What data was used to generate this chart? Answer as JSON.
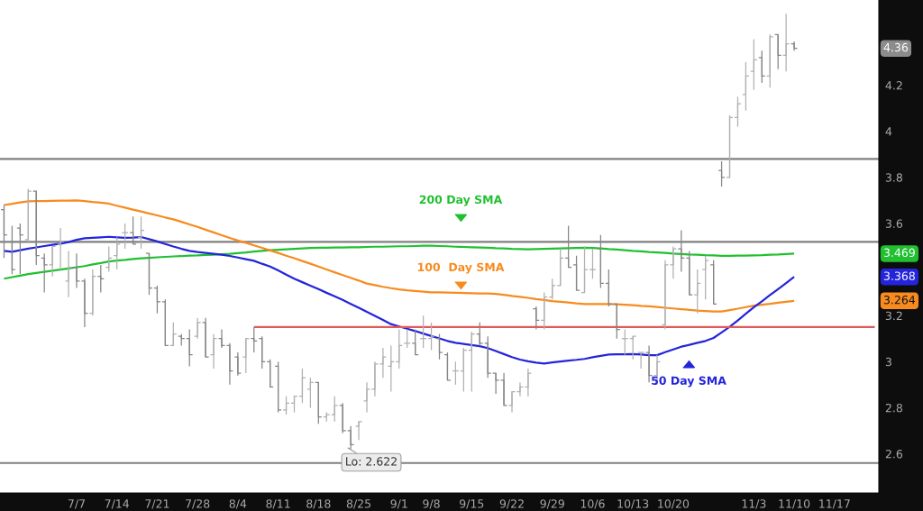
{
  "chart_data": {
    "type": "candlestick",
    "categories": [
      null,
      null,
      null,
      null,
      null,
      null,
      null,
      null,
      null,
      "7/7",
      null,
      null,
      null,
      null,
      "7/14",
      null,
      null,
      null,
      null,
      "7/21",
      null,
      null,
      null,
      null,
      "7/28",
      null,
      null,
      null,
      null,
      "8/4",
      null,
      null,
      null,
      null,
      "8/11",
      null,
      null,
      null,
      null,
      "8/18",
      null,
      null,
      null,
      null,
      "8/25",
      null,
      null,
      null,
      null,
      "9/1",
      null,
      null,
      null,
      "9/8",
      null,
      null,
      null,
      null,
      "9/15",
      null,
      null,
      null,
      null,
      "9/22",
      null,
      null,
      null,
      null,
      "9/29",
      null,
      null,
      null,
      null,
      "10/6",
      null,
      null,
      null,
      null,
      "10/13",
      null,
      null,
      null,
      null,
      "10/20",
      null,
      null,
      null,
      null,
      null,
      null,
      null,
      null,
      null,
      "11/3",
      null,
      null,
      null,
      null,
      "11/10",
      null,
      null,
      null,
      null,
      "11/17",
      null,
      null,
      null,
      null,
      null
    ],
    "ylim": [
      2.43,
      4.57
    ],
    "yticks": [
      2.6,
      2.8,
      3,
      3.2,
      3.6,
      3.8,
      4,
      4.2
    ],
    "series": [
      {
        "color": "#8c8c8c",
        "colors": [
          "#868686",
          "#868686",
          "#868686",
          "#b0b0b0",
          "#868686",
          "#868686",
          "#b0b0b0",
          "#b0b0b0",
          "#b0b0b0",
          "#868686",
          "#868686",
          "#b0b0b0",
          "#868686",
          "#b0b0b0",
          "#b0b0b0",
          "#b0b0b0",
          "#868686",
          "#b0b0b0",
          "#868686",
          "#868686",
          "#868686",
          "#b0b0b0",
          "#868686",
          "#868686",
          "#b0b0b0",
          "#868686",
          "#b0b0b0",
          "#868686",
          "#868686",
          "#868686",
          "#b0b0b0",
          "#868686",
          "#868686",
          "#868686",
          "#868686",
          "#b0b0b0",
          "#b0b0b0",
          "#b0b0b0",
          "#b0b0b0",
          "#868686",
          "#b0b0b0",
          "#b0b0b0",
          "#868686",
          "#868686",
          "#b0b0b0",
          "#b0b0b0",
          "#b0b0b0",
          "#b0b0b0",
          "#b0b0b0",
          "#b0b0b0",
          "#b0b0b0",
          "#868686",
          "#b0b0b0",
          "#b0b0b0",
          "#868686",
          "#868686",
          "#b0b0b0",
          "#b0b0b0",
          "#b0b0b0",
          "#868686",
          "#868686",
          "#868686",
          "#868686",
          "#b0b0b0",
          "#b0b0b0",
          "#b0b0b0",
          "#868686",
          "#b0b0b0",
          "#b0b0b0",
          "#b0b0b0",
          "#868686",
          "#868686",
          "#b0b0b0",
          "#b0b0b0",
          "#868686",
          "#868686",
          "#868686",
          "#b0b0b0",
          "#b0b0b0",
          "#b0b0b0",
          "#868686",
          "#b0b0b0",
          "#b0b0b0",
          "#b0b0b0",
          "#868686",
          "#868686",
          "#b0b0b0",
          "#b0b0b0",
          "#868686",
          "#868686",
          "#b0b0b0",
          "#b0b0b0",
          "#b0b0b0",
          "#b0b0b0",
          "#868686",
          "#b0b0b0",
          "#868686",
          "#b0b0b0",
          "#868686",
          null,
          null,
          null,
          null,
          null,
          null,
          null,
          null,
          null,
          null
        ],
        "ohlc": [
          [
            3.66,
            3.68,
            3.45,
            3.55
          ],
          [
            3.52,
            3.59,
            3.38,
            3.4
          ],
          [
            3.58,
            3.6,
            3.38,
            3.55
          ],
          [
            3.53,
            3.75,
            3.52,
            3.74
          ],
          [
            3.74,
            3.74,
            3.42,
            3.46
          ],
          [
            3.45,
            3.47,
            3.3,
            3.42
          ],
          [
            3.42,
            3.5,
            3.37,
            3.5
          ],
          [
            3.51,
            3.58,
            3.4,
            3.52
          ],
          [
            3.35,
            3.48,
            3.28,
            3.41
          ],
          [
            3.41,
            3.47,
            3.32,
            3.35
          ],
          [
            3.35,
            3.36,
            3.15,
            3.21
          ],
          [
            3.21,
            3.4,
            3.2,
            3.37
          ],
          [
            3.37,
            3.42,
            3.3,
            3.36
          ],
          [
            3.41,
            3.5,
            3.39,
            3.45
          ],
          [
            3.46,
            3.54,
            3.4,
            3.51
          ],
          [
            3.56,
            3.6,
            3.49,
            3.56
          ],
          [
            3.56,
            3.63,
            3.51,
            3.51
          ],
          [
            3.54,
            3.63,
            3.49,
            3.57
          ],
          [
            3.47,
            3.47,
            3.29,
            3.32
          ],
          [
            3.32,
            3.33,
            3.21,
            3.26
          ],
          [
            3.26,
            3.27,
            3.07,
            3.07
          ],
          [
            3.07,
            3.17,
            3.07,
            3.12
          ],
          [
            3.11,
            3.12,
            3.07,
            3.1
          ],
          [
            3.1,
            3.14,
            2.98,
            3.03
          ],
          [
            3.11,
            3.19,
            3.1,
            3.17
          ],
          [
            3.17,
            3.19,
            3.02,
            3.02
          ],
          [
            3.03,
            3.12,
            2.97,
            3.1
          ],
          [
            3.1,
            3.14,
            3.06,
            3.07
          ],
          [
            3.07,
            3.08,
            2.9,
            2.96
          ],
          [
            3.02,
            3.04,
            2.94,
            2.95
          ],
          [
            3.02,
            3.1,
            2.95,
            3.1
          ],
          [
            3.1,
            3.15,
            3.04,
            3.09
          ],
          [
            3.1,
            3.11,
            2.97,
            3.0
          ],
          [
            3.0,
            3.01,
            2.89,
            2.89
          ],
          [
            2.98,
            3.0,
            2.78,
            2.79
          ],
          [
            2.79,
            2.85,
            2.77,
            2.82
          ],
          [
            2.82,
            2.85,
            2.78,
            2.85
          ],
          [
            2.85,
            2.97,
            2.82,
            2.93
          ],
          [
            2.88,
            2.93,
            2.8,
            2.91
          ],
          [
            2.91,
            2.91,
            2.73,
            2.76
          ],
          [
            2.76,
            2.78,
            2.74,
            2.77
          ],
          [
            2.77,
            2.85,
            2.74,
            2.81
          ],
          [
            2.81,
            2.82,
            2.69,
            2.7
          ],
          [
            2.7,
            2.72,
            2.622,
            2.64
          ],
          [
            2.72,
            2.74,
            2.66,
            2.74
          ],
          [
            2.83,
            2.91,
            2.78,
            2.88
          ],
          [
            2.88,
            3.0,
            2.85,
            2.99
          ],
          [
            2.99,
            3.06,
            2.93,
            3.02
          ],
          [
            2.98,
            3.07,
            2.87,
            3.0
          ],
          [
            3.0,
            3.14,
            2.97,
            3.07
          ],
          [
            3.08,
            3.14,
            3.06,
            3.08
          ],
          [
            3.08,
            3.14,
            3.03,
            3.03
          ],
          [
            3.1,
            3.2,
            3.06,
            3.1
          ],
          [
            3.1,
            3.17,
            3.05,
            3.11
          ],
          [
            3.1,
            3.12,
            3.01,
            3.04
          ],
          [
            3.03,
            3.04,
            2.92,
            2.92
          ],
          [
            2.96,
            3.0,
            2.9,
            2.96
          ],
          [
            2.96,
            3.06,
            2.87,
            3.05
          ],
          [
            3.05,
            3.13,
            2.87,
            3.12
          ],
          [
            3.12,
            3.17,
            3.07,
            3.08
          ],
          [
            3.08,
            3.11,
            2.93,
            2.95
          ],
          [
            2.95,
            2.95,
            2.86,
            2.92
          ],
          [
            2.92,
            2.95,
            2.81,
            2.81
          ],
          [
            2.81,
            2.87,
            2.78,
            2.87
          ],
          [
            2.87,
            2.91,
            2.85,
            2.89
          ],
          [
            2.89,
            2.97,
            2.85,
            2.95
          ],
          [
            3.23,
            3.24,
            3.14,
            3.18
          ],
          [
            3.18,
            3.3,
            3.14,
            3.28
          ],
          [
            3.28,
            3.36,
            3.27,
            3.33
          ],
          [
            3.33,
            3.49,
            3.33,
            3.45
          ],
          [
            3.45,
            3.59,
            3.41,
            3.41
          ],
          [
            3.42,
            3.46,
            3.31,
            3.31
          ],
          [
            3.3,
            3.5,
            3.3,
            3.4
          ],
          [
            3.4,
            3.49,
            3.36,
            3.4
          ],
          [
            3.49,
            3.55,
            3.32,
            3.34
          ],
          [
            3.34,
            3.4,
            3.24,
            3.25
          ],
          [
            3.25,
            3.25,
            3.1,
            3.14
          ],
          [
            3.1,
            3.14,
            3.03,
            3.1
          ],
          [
            3.1,
            3.11,
            3.01,
            3.11
          ],
          [
            3.04,
            3.04,
            2.97,
            3.04
          ],
          [
            3.04,
            3.07,
            2.91,
            2.94
          ],
          [
            2.94,
            3.03,
            2.9,
            3.0
          ],
          [
            3.16,
            3.44,
            3.14,
            3.42
          ],
          [
            3.42,
            3.5,
            3.36,
            3.49
          ],
          [
            3.49,
            3.57,
            3.39,
            3.45
          ],
          [
            3.45,
            3.48,
            3.29,
            3.29
          ],
          [
            3.29,
            3.4,
            3.21,
            3.34
          ],
          [
            3.4,
            3.46,
            3.27,
            3.44
          ],
          [
            3.42,
            3.44,
            3.25,
            3.25
          ],
          [
            3.83,
            3.87,
            3.76,
            3.8
          ],
          [
            3.8,
            4.07,
            3.8,
            4.06
          ],
          [
            4.06,
            4.15,
            4.02,
            4.12
          ],
          [
            4.16,
            4.3,
            4.09,
            4.24
          ],
          [
            4.26,
            4.4,
            4.18,
            4.31
          ],
          [
            4.32,
            4.35,
            4.21,
            4.24
          ],
          [
            4.24,
            4.42,
            4.19,
            4.41
          ],
          [
            4.42,
            4.42,
            4.27,
            4.33
          ],
          [
            4.33,
            4.51,
            4.26,
            4.38
          ],
          [
            4.38,
            4.39,
            4.35,
            4.36
          ],
          null,
          null,
          null,
          null,
          null,
          null,
          null,
          null,
          null,
          null
        ]
      },
      {
        "type": "line",
        "color": "#20c030",
        "values": [
          3.36,
          3.367,
          3.373,
          3.38,
          3.385,
          3.39,
          3.395,
          3.4,
          3.405,
          3.41,
          3.415,
          3.422,
          3.428,
          3.435,
          3.439,
          3.442,
          3.446,
          3.449,
          3.451,
          3.453,
          3.455,
          3.457,
          3.458,
          3.46,
          3.461,
          3.463,
          3.464,
          3.466,
          3.468,
          3.471,
          3.474,
          3.478,
          3.481,
          3.484,
          3.486,
          3.488,
          3.49,
          3.492,
          3.494,
          3.495,
          3.495,
          3.496,
          3.496,
          3.497,
          3.497,
          3.498,
          3.499,
          3.499,
          3.5,
          3.501,
          3.501,
          3.502,
          3.503,
          3.503,
          3.502,
          3.501,
          3.499,
          3.498,
          3.497,
          3.496,
          3.495,
          3.493,
          3.492,
          3.49,
          3.489,
          3.488,
          3.489,
          3.49,
          3.491,
          3.492,
          3.493,
          3.494,
          3.495,
          3.494,
          3.492,
          3.489,
          3.487,
          3.484,
          3.481,
          3.479,
          3.476,
          3.474,
          3.472,
          3.469,
          3.467,
          3.465,
          3.464,
          3.462,
          3.461,
          3.459,
          3.459,
          3.46,
          3.46,
          3.461,
          3.462,
          3.464,
          3.465,
          3.467,
          3.469,
          null,
          null,
          null,
          null,
          null,
          null,
          null,
          null,
          null,
          null
        ]
      },
      {
        "type": "line",
        "color": "#f78b1f",
        "values": [
          3.68,
          3.685,
          3.691,
          3.696,
          3.697,
          3.697,
          3.698,
          3.699,
          3.699,
          3.7,
          3.697,
          3.693,
          3.69,
          3.686,
          3.677,
          3.669,
          3.66,
          3.652,
          3.643,
          3.635,
          3.626,
          3.618,
          3.607,
          3.596,
          3.585,
          3.573,
          3.561,
          3.549,
          3.537,
          3.526,
          3.516,
          3.505,
          3.494,
          3.483,
          3.472,
          3.46,
          3.449,
          3.437,
          3.425,
          3.413,
          3.4,
          3.388,
          3.376,
          3.364,
          3.352,
          3.339,
          3.332,
          3.325,
          3.319,
          3.314,
          3.31,
          3.307,
          3.304,
          3.301,
          3.301,
          3.3,
          3.299,
          3.298,
          3.297,
          3.296,
          3.296,
          3.294,
          3.29,
          3.285,
          3.281,
          3.277,
          3.272,
          3.268,
          3.263,
          3.26,
          3.257,
          3.253,
          3.25,
          3.25,
          3.25,
          3.25,
          3.249,
          3.247,
          3.245,
          3.242,
          3.24,
          3.237,
          3.234,
          3.231,
          3.228,
          3.225,
          3.222,
          3.22,
          3.218,
          3.218,
          3.224,
          3.23,
          3.237,
          3.243,
          3.247,
          3.251,
          3.256,
          3.26,
          3.264,
          null,
          null,
          null,
          null,
          null,
          null,
          null,
          null,
          null,
          null
        ]
      },
      {
        "type": "line",
        "color": "#2424dc",
        "values": [
          3.481,
          3.477,
          3.484,
          3.491,
          3.496,
          3.502,
          3.507,
          3.512,
          3.519,
          3.529,
          3.536,
          3.538,
          3.54,
          3.542,
          3.54,
          3.538,
          3.539,
          3.541,
          3.532,
          3.522,
          3.511,
          3.5,
          3.49,
          3.481,
          3.476,
          3.472,
          3.468,
          3.464,
          3.459,
          3.452,
          3.445,
          3.438,
          3.425,
          3.413,
          3.396,
          3.378,
          3.36,
          3.345,
          3.33,
          3.315,
          3.299,
          3.284,
          3.268,
          3.251,
          3.234,
          3.216,
          3.199,
          3.181,
          3.163,
          3.153,
          3.143,
          3.133,
          3.122,
          3.111,
          3.101,
          3.09,
          3.082,
          3.077,
          3.072,
          3.067,
          3.059,
          3.046,
          3.033,
          3.02,
          3.009,
          3.002,
          2.996,
          2.992,
          2.997,
          3.001,
          3.005,
          3.008,
          3.012,
          3.019,
          3.025,
          3.031,
          3.032,
          3.032,
          3.033,
          3.031,
          3.028,
          3.028,
          3.041,
          3.053,
          3.065,
          3.073,
          3.082,
          3.09,
          3.103,
          3.127,
          3.151,
          3.179,
          3.208,
          3.236,
          3.262,
          3.289,
          3.315,
          3.341,
          3.368,
          null,
          null,
          null,
          null,
          null,
          null,
          null,
          null,
          null,
          null
        ]
      },
      {
        "type": "line",
        "color": "#e05a5a",
        "values": [
          null,
          null,
          null,
          null,
          null,
          null,
          null,
          null,
          null,
          null,
          null,
          null,
          null,
          null,
          null,
          null,
          null,
          null,
          null,
          null,
          null,
          null,
          null,
          null,
          null,
          null,
          null,
          null,
          null,
          null,
          null,
          3.15,
          3.15,
          3.15,
          3.15,
          3.15,
          3.15,
          3.15,
          3.15,
          3.15,
          3.15,
          3.15,
          3.15,
          3.15,
          3.15,
          3.15,
          3.15,
          3.15,
          3.15,
          3.15,
          3.15,
          3.15,
          3.15,
          3.15,
          3.15,
          3.15,
          3.15,
          3.15,
          3.15,
          3.15,
          3.15,
          3.15,
          3.15,
          3.15,
          3.15,
          3.15,
          3.15,
          3.15,
          3.15,
          3.15,
          3.15,
          3.15,
          3.15,
          3.15,
          3.15,
          3.15,
          3.15,
          3.15,
          3.15,
          3.15,
          3.15,
          3.15,
          3.15,
          3.15,
          3.15,
          3.15,
          3.15,
          3.15,
          3.15,
          3.15,
          3.15,
          3.15,
          3.15,
          3.15,
          3.15,
          3.15,
          3.15,
          3.15,
          3.15,
          3.15,
          3.15,
          3.15,
          3.15,
          3.15,
          3.15,
          3.15,
          3.15,
          3.15,
          3.15
        ]
      }
    ],
    "ref_lines": [
      {
        "axis": "y",
        "value": 3.88,
        "color": "#808080"
      },
      {
        "axis": "y",
        "value": 3.52,
        "color": "#808080"
      },
      {
        "axis": "y",
        "value": 2.56,
        "color": "#808080"
      }
    ],
    "annotations": [
      "200 Day SMA",
      "100  Day SMA",
      "50 Day SMA",
      "Lo: 2.622",
      {
        "text": "4.36",
        "y": 4.36
      },
      {
        "text": "3.469",
        "y": 3.469
      },
      {
        "text": "3.368",
        "y": 3.368
      },
      {
        "text": "3.264",
        "y": 3.264
      }
    ]
  }
}
